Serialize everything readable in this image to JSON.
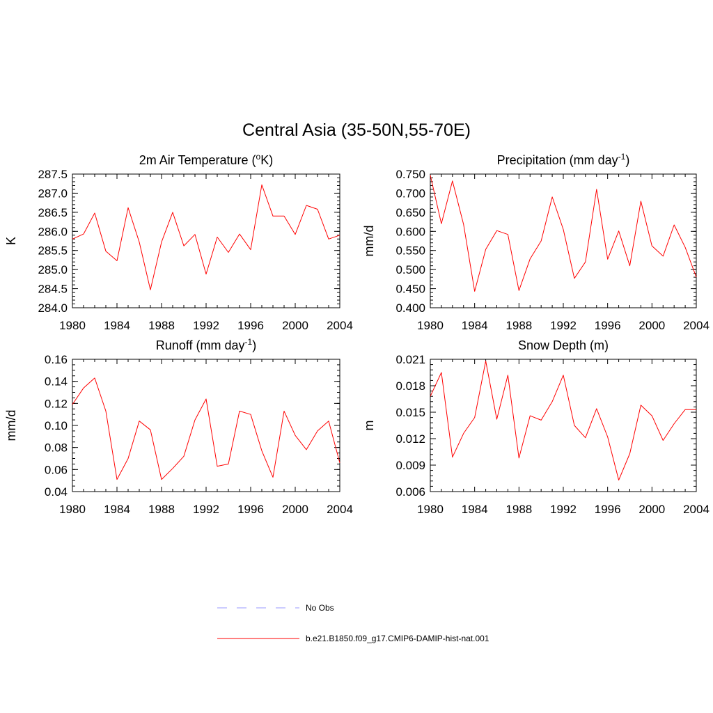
{
  "page_title": "Central Asia (35-50N,55-70E)",
  "legend": [
    {
      "label": "No Obs",
      "color": "#9999ff",
      "style": "dashed"
    },
    {
      "label": "b.e21.B1850.f09_g17.CMIP6-DAMIP-hist-nat.001",
      "color": "#ff0000",
      "style": "solid"
    }
  ],
  "chart_data": [
    {
      "type": "line",
      "title_main": "2m Air Temperature (",
      "title_sup": "o",
      "title_after_sup": "K)",
      "ylabel": "K",
      "xlim": [
        1980,
        2004
      ],
      "ylim": [
        284.0,
        287.5
      ],
      "xticks": [
        1980,
        1984,
        1988,
        1992,
        1996,
        2000,
        2004
      ],
      "yticks": [
        284.0,
        284.5,
        285.0,
        285.5,
        286.0,
        286.5,
        287.0,
        287.5
      ],
      "ytick_decimals": 1,
      "yminor_step": 0.1,
      "series": [
        {
          "color": "#ff0000",
          "x": [
            1980,
            1981,
            1982,
            1983,
            1984,
            1985,
            1986,
            1987,
            1988,
            1989,
            1990,
            1991,
            1992,
            1993,
            1994,
            1995,
            1996,
            1997,
            1998,
            1999,
            2000,
            2001,
            2002,
            2003,
            2004
          ],
          "values": [
            285.8,
            285.93,
            286.48,
            285.48,
            285.23,
            286.62,
            285.72,
            284.47,
            285.72,
            286.5,
            285.62,
            285.92,
            284.88,
            285.85,
            285.45,
            285.93,
            285.52,
            287.22,
            286.4,
            286.4,
            285.92,
            286.68,
            286.58,
            285.8,
            285.9
          ]
        }
      ]
    },
    {
      "type": "line",
      "title_main": "Precipitation (mm day",
      "title_sup": "-1",
      "title_after_sup": ")",
      "ylabel": "mm/d",
      "xlim": [
        1980,
        2004
      ],
      "ylim": [
        0.4,
        0.75
      ],
      "xticks": [
        1980,
        1984,
        1988,
        1992,
        1996,
        2000,
        2004
      ],
      "yticks": [
        0.4,
        0.45,
        0.5,
        0.55,
        0.6,
        0.65,
        0.7,
        0.75
      ],
      "ytick_decimals": 3,
      "yminor_step": 0.01,
      "series": [
        {
          "color": "#ff0000",
          "x": [
            1980,
            1981,
            1982,
            1983,
            1984,
            1985,
            1986,
            1987,
            1988,
            1989,
            1990,
            1991,
            1992,
            1993,
            1994,
            1995,
            1996,
            1997,
            1998,
            1999,
            2000,
            2001,
            2002,
            2003,
            2004
          ],
          "values": [
            0.747,
            0.62,
            0.732,
            0.618,
            0.443,
            0.553,
            0.602,
            0.592,
            0.445,
            0.528,
            0.575,
            0.69,
            0.605,
            0.477,
            0.52,
            0.71,
            0.527,
            0.601,
            0.51,
            0.679,
            0.562,
            0.535,
            0.617,
            0.558,
            0.48
          ]
        }
      ]
    },
    {
      "type": "line",
      "title_main": "Runoff (mm day",
      "title_sup": "-1",
      "title_after_sup": ")",
      "ylabel": "mm/d",
      "xlim": [
        1980,
        2004
      ],
      "ylim": [
        0.04,
        0.16
      ],
      "xticks": [
        1980,
        1984,
        1988,
        1992,
        1996,
        2000,
        2004
      ],
      "yticks": [
        0.04,
        0.06,
        0.08,
        0.1,
        0.12,
        0.14,
        0.16
      ],
      "ytick_decimals": 2,
      "yminor_step": 0.005,
      "series": [
        {
          "color": "#ff0000",
          "x": [
            1980,
            1981,
            1982,
            1983,
            1984,
            1985,
            1986,
            1987,
            1988,
            1989,
            1990,
            1991,
            1992,
            1993,
            1994,
            1995,
            1996,
            1997,
            1998,
            1999,
            2000,
            2001,
            2002,
            2003,
            2004
          ],
          "values": [
            0.119,
            0.134,
            0.143,
            0.113,
            0.051,
            0.07,
            0.104,
            0.096,
            0.051,
            0.061,
            0.072,
            0.105,
            0.124,
            0.063,
            0.065,
            0.113,
            0.11,
            0.077,
            0.053,
            0.113,
            0.091,
            0.078,
            0.095,
            0.104,
            0.066
          ]
        }
      ]
    },
    {
      "type": "line",
      "title_main": "Snow Depth (m)",
      "title_sup": "",
      "title_after_sup": "",
      "ylabel": "m",
      "xlim": [
        1980,
        2004
      ],
      "ylim": [
        0.006,
        0.021
      ],
      "xticks": [
        1980,
        1984,
        1988,
        1992,
        1996,
        2000,
        2004
      ],
      "yticks": [
        0.006,
        0.009,
        0.012,
        0.015,
        0.018,
        0.021
      ],
      "ytick_decimals": 3,
      "yminor_step": 0.0006,
      "series": [
        {
          "color": "#ff0000",
          "x": [
            1980,
            1981,
            1982,
            1983,
            1984,
            1985,
            1986,
            1987,
            1988,
            1989,
            1990,
            1991,
            1992,
            1993,
            1994,
            1995,
            1996,
            1997,
            1998,
            1999,
            2000,
            2001,
            2002,
            2003,
            2004
          ],
          "values": [
            0.0168,
            0.0195,
            0.0099,
            0.0126,
            0.0144,
            0.0208,
            0.0142,
            0.0192,
            0.0098,
            0.0146,
            0.0141,
            0.0162,
            0.0192,
            0.0135,
            0.0121,
            0.0154,
            0.0122,
            0.0073,
            0.0103,
            0.0158,
            0.0146,
            0.0118,
            0.0137,
            0.0153,
            0.0153
          ]
        }
      ]
    }
  ]
}
